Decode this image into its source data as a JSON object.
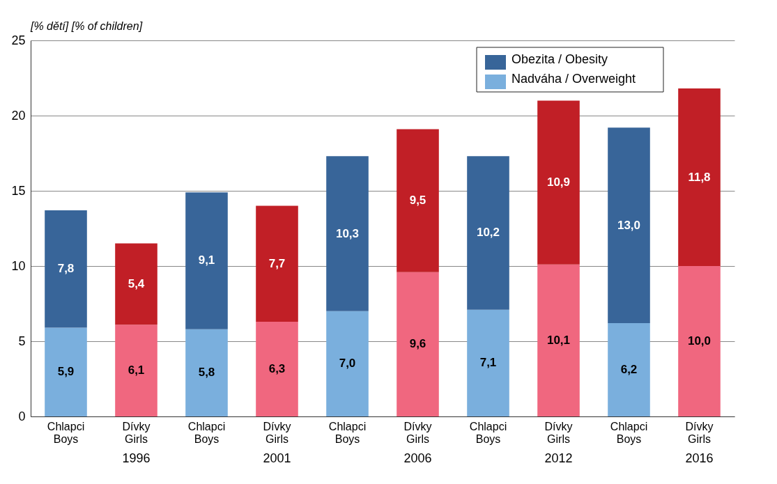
{
  "chart_data": {
    "type": "bar",
    "stacked": true,
    "ylabel": "[% dětí]  [% of children]",
    "categories": [
      "Chlapci\nBoys",
      "Dívky\nGirls",
      "Chlapci\nBoys",
      "Dívky\nGirls",
      "Chlapci\nBoys",
      "Dívky\nGirls",
      "Chlapci\nBoys",
      "Dívky\nGirls",
      "Chlapci\nBoys",
      "Dívky\nGirls"
    ],
    "series": [
      {
        "name": "Nadváha / Overweight",
        "color": "#7aafdd",
        "colors": [
          "#7aafdd",
          "#f0677f",
          "#7aafdd",
          "#f0677f",
          "#7aafdd",
          "#f0677f",
          "#7aafdd",
          "#f0677f",
          "#7aafdd",
          "#f0677f"
        ],
        "values": [
          5.9,
          6.1,
          5.8,
          6.3,
          7.0,
          9.6,
          7.1,
          10.1,
          6.2,
          10.0
        ],
        "value_labels": [
          "5,9",
          "6,1",
          "5,8",
          "6,3",
          "7,0",
          "9,6",
          "7,1",
          "10,1",
          "6,2",
          "10,0"
        ]
      },
      {
        "name": "Obezita / Obesity",
        "color": "#386599",
        "colors": [
          "#386599",
          "#c11f26",
          "#386599",
          "#c11f26",
          "#386599",
          "#c11f26",
          "#386599",
          "#c11f26",
          "#386599",
          "#c11f26"
        ],
        "values": [
          7.8,
          5.4,
          9.1,
          7.7,
          10.3,
          9.5,
          10.2,
          10.9,
          13.0,
          11.8
        ],
        "value_labels": [
          "7,8",
          "5,4",
          "9,1",
          "7,7",
          "10,3",
          "9,5",
          "10,2",
          "10,9",
          "13,0",
          "11,8"
        ]
      }
    ],
    "annotations": [
      "1996",
      "2001",
      "2006",
      "2012",
      "2016"
    ],
    "ylim": [
      0,
      25
    ],
    "yticks": [
      0,
      5,
      10,
      15,
      20,
      25
    ],
    "grid": "y",
    "legend": "top right"
  }
}
